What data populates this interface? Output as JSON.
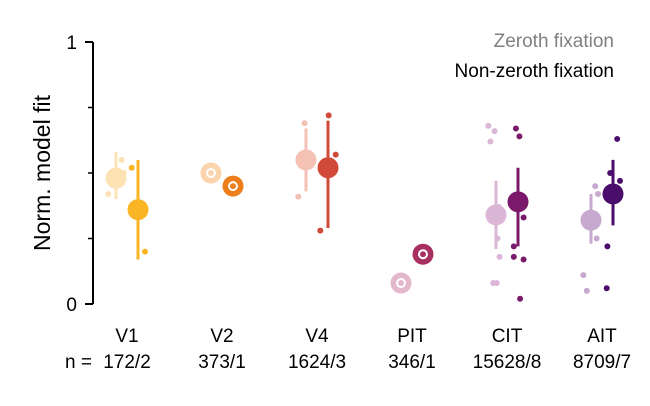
{
  "chart_data": {
    "type": "scatter",
    "title": "",
    "ylabel": "Norm. model fit",
    "ylim": [
      0,
      1
    ],
    "yticks": [
      0,
      1
    ],
    "n_prefix": "n =",
    "legend": {
      "placement": "top-right",
      "entries": [
        {
          "label": "Zeroth fixation",
          "color": "#808080"
        },
        {
          "label": "Non-zeroth fixation",
          "color": "#000000"
        }
      ]
    },
    "categories": [
      {
        "name": "V1",
        "n": "172/2",
        "zeroth": {
          "color": "#fde2b4",
          "mean": 0.48,
          "ci": [
            0.4,
            0.58
          ],
          "filled": true,
          "points": [
            {
              "dx": -0.55,
              "y": 0.42
            },
            {
              "dx": 0.4,
              "y": 0.55
            },
            {
              "dx": 0.55,
              "y": 0.5
            }
          ]
        },
        "nonzeroth": {
          "color": "#f9b523",
          "mean": 0.36,
          "ci": [
            0.17,
            0.55
          ],
          "filled": true,
          "points": [
            {
              "dx": -0.45,
              "y": 0.52
            },
            {
              "dx": 0.5,
              "y": 0.2
            }
          ]
        }
      },
      {
        "name": "V2",
        "n": "373/1",
        "zeroth": {
          "color": "#fbd3ac",
          "mean": 0.5,
          "ci": null,
          "filled": false,
          "points": []
        },
        "nonzeroth": {
          "color": "#ee7d1c",
          "mean": 0.45,
          "ci": null,
          "filled": false,
          "points": []
        }
      },
      {
        "name": "V4",
        "n": "1624/3",
        "zeroth": {
          "color": "#f4c1b4",
          "mean": 0.55,
          "ci": [
            0.43,
            0.67
          ],
          "filled": true,
          "points": [
            {
              "dx": -0.55,
              "y": 0.41
            },
            {
              "dx": -0.1,
              "y": 0.69
            },
            {
              "dx": 0.45,
              "y": 0.54
            }
          ]
        },
        "nonzeroth": {
          "color": "#d14a37",
          "mean": 0.52,
          "ci": [
            0.29,
            0.7
          ],
          "filled": true,
          "points": [
            {
              "dx": -0.55,
              "y": 0.28
            },
            {
              "dx": 0.05,
              "y": 0.72
            },
            {
              "dx": 0.55,
              "y": 0.57
            }
          ]
        }
      },
      {
        "name": "PIT",
        "n": "346/1",
        "zeroth": {
          "color": "#e4b8cb",
          "mean": 0.08,
          "ci": null,
          "filled": false,
          "points": []
        },
        "nonzeroth": {
          "color": "#a83060",
          "mean": 0.19,
          "ci": null,
          "filled": false,
          "points": []
        }
      },
      {
        "name": "CIT",
        "n": "15628/8",
        "zeroth": {
          "color": "#dbb6d6",
          "mean": 0.34,
          "ci": [
            0.21,
            0.47
          ],
          "filled": true,
          "points": [
            {
              "dx": -0.55,
              "y": 0.68
            },
            {
              "dx": -0.4,
              "y": 0.62
            },
            {
              "dx": -0.1,
              "y": 0.66
            },
            {
              "dx": 0.1,
              "y": 0.25
            },
            {
              "dx": 0.25,
              "y": 0.18
            },
            {
              "dx": -0.2,
              "y": 0.08
            },
            {
              "dx": 0.05,
              "y": 0.08
            },
            {
              "dx": 0.2,
              "y": 0.37
            }
          ]
        },
        "nonzeroth": {
          "color": "#7b1a6a",
          "mean": 0.39,
          "ci": [
            0.22,
            0.52
          ],
          "filled": true,
          "points": [
            {
              "dx": -0.15,
              "y": 0.67
            },
            {
              "dx": 0.1,
              "y": 0.64
            },
            {
              "dx": 0.4,
              "y": 0.33
            },
            {
              "dx": -0.3,
              "y": 0.18
            },
            {
              "dx": 0.4,
              "y": 0.17
            },
            {
              "dx": -0.3,
              "y": 0.22
            },
            {
              "dx": 0.15,
              "y": 0.02
            }
          ]
        }
      },
      {
        "name": "AIT",
        "n": "8709/7",
        "zeroth": {
          "color": "#c7a9cf",
          "mean": 0.32,
          "ci": [
            0.23,
            0.42
          ],
          "filled": true,
          "points": [
            {
              "dx": -0.55,
              "y": 0.11
            },
            {
              "dx": 0.3,
              "y": 0.45
            },
            {
              "dx": 0.5,
              "y": 0.42
            },
            {
              "dx": -0.3,
              "y": 0.05
            },
            {
              "dx": 0.4,
              "y": 0.25
            }
          ]
        },
        "nonzeroth": {
          "color": "#4a0d6b",
          "mean": 0.42,
          "ci": [
            0.3,
            0.55
          ],
          "filled": true,
          "points": [
            {
              "dx": 0.3,
              "y": 0.63
            },
            {
              "dx": -0.2,
              "y": 0.5
            },
            {
              "dx": 0.5,
              "y": 0.47
            },
            {
              "dx": -0.4,
              "y": 0.22
            },
            {
              "dx": -0.45,
              "y": 0.06
            }
          ]
        }
      }
    ]
  }
}
